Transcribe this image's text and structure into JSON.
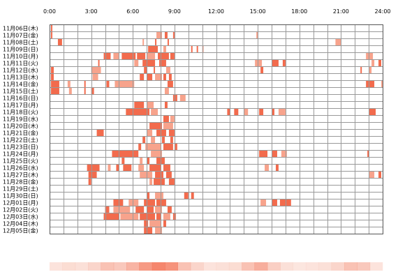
{
  "chart_data": {
    "type": "heatmap",
    "title": "",
    "xlabel": "",
    "ylabel": "",
    "xlim": [
      0,
      24
    ],
    "x_ticks": [
      "0:00",
      "3:00",
      "6:00",
      "9:00",
      "12:00",
      "15:00",
      "18:00",
      "21:00",
      "24:00"
    ],
    "grid": true,
    "colors": {
      "activity": "#f26b4d",
      "activity_light": "#f7a38c",
      "grid": "#999999",
      "border": "#555555"
    },
    "rows": [
      {
        "date": "11月06日(木)",
        "spans": [
          [
            0.1,
            0.2
          ]
        ]
      },
      {
        "date": "11月07日(金)",
        "spans": [
          [
            0.1,
            0.2
          ],
          [
            7.7,
            8.1
          ],
          [
            8.3,
            8.5
          ],
          [
            8.9,
            9.0
          ],
          [
            14.9,
            15.0
          ]
        ]
      },
      {
        "date": "11月08日(土)",
        "spans": [
          [
            0.6,
            0.9
          ],
          [
            6.7,
            6.8
          ],
          [
            7.6,
            7.7
          ],
          [
            8.5,
            8.6
          ],
          [
            20.6,
            21.0
          ]
        ]
      },
      {
        "date": "11月09日(日)",
        "spans": [
          [
            7.1,
            7.8
          ],
          [
            8.2,
            8.4
          ],
          [
            10.2,
            10.3
          ],
          [
            10.6,
            10.7
          ],
          [
            11.0,
            11.1
          ]
        ]
      },
      {
        "date": "11月10日(月)",
        "spans": [
          [
            3.9,
            4.4
          ],
          [
            4.6,
            5.0
          ],
          [
            5.2,
            6.2
          ],
          [
            6.3,
            6.9
          ],
          [
            7.0,
            7.6
          ],
          [
            7.8,
            8.6
          ],
          [
            8.7,
            9.0
          ],
          [
            22.8,
            23.3
          ]
        ]
      },
      {
        "date": "11月11日(火)",
        "spans": [
          [
            3.5,
            3.6
          ],
          [
            6.1,
            6.4
          ],
          [
            6.7,
            7.6
          ],
          [
            7.9,
            8.4
          ],
          [
            14.8,
            15.3
          ],
          [
            16.0,
            16.5
          ],
          [
            16.8,
            17.0
          ],
          [
            23.2,
            23.4
          ],
          [
            23.7,
            23.9
          ]
        ]
      },
      {
        "date": "11月12日(水)",
        "spans": [
          [
            0.1,
            0.3
          ],
          [
            3.0,
            3.7
          ],
          [
            6.8,
            7.0
          ],
          [
            7.5,
            7.6
          ],
          [
            8.4,
            8.7
          ],
          [
            15.2,
            15.4
          ],
          [
            22.4,
            22.5
          ],
          [
            23.0,
            23.2
          ]
        ]
      },
      {
        "date": "11月13日(木)",
        "spans": [
          [
            0.1,
            0.3
          ],
          [
            3.1,
            3.5
          ],
          [
            6.5,
            6.8
          ],
          [
            7.0,
            7.4
          ],
          [
            7.6,
            8.1
          ],
          [
            8.2,
            8.4
          ],
          [
            8.6,
            8.8
          ]
        ]
      },
      {
        "date": "11月14日(金)",
        "spans": [
          [
            0.1,
            0.7
          ],
          [
            1.3,
            1.5
          ],
          [
            2.5,
            2.6
          ],
          [
            4.1,
            4.3
          ],
          [
            4.7,
            6.1
          ],
          [
            8.5,
            8.9
          ],
          [
            22.8,
            23.4
          ],
          [
            23.9,
            24.0
          ]
        ]
      },
      {
        "date": "11月15日(土)",
        "spans": [
          [
            0.1,
            0.7
          ],
          [
            1.4,
            1.6
          ],
          [
            2.5,
            2.6
          ],
          [
            3.0,
            3.2
          ],
          [
            8.3,
            8.6
          ]
        ]
      },
      {
        "date": "11月16日(日)",
        "spans": [
          [
            8.9,
            9.2
          ],
          [
            9.4,
            9.8
          ]
        ]
      },
      {
        "date": "11月17日(月)",
        "spans": [
          [
            6.1,
            6.8
          ],
          [
            7.0,
            7.5
          ],
          [
            8.3,
            8.5
          ]
        ]
      },
      {
        "date": "11月18日(火)",
        "spans": [
          [
            5.5,
            7.2
          ],
          [
            7.3,
            7.8
          ],
          [
            12.8,
            13.0
          ],
          [
            13.3,
            13.6
          ],
          [
            14.0,
            14.3
          ],
          [
            15.1,
            15.4
          ],
          [
            16.0,
            16.2
          ],
          [
            16.5,
            17.0
          ],
          [
            23.0,
            23.5
          ]
        ]
      },
      {
        "date": "11月19日(水)",
        "spans": [
          [
            8.2,
            8.6
          ],
          [
            8.7,
            9.0
          ]
        ]
      },
      {
        "date": "11月20日(木)",
        "spans": [
          [
            7.2,
            8.1
          ],
          [
            8.2,
            8.9
          ]
        ]
      },
      {
        "date": "11月21日(金)",
        "spans": [
          [
            3.4,
            3.9
          ],
          [
            7.0,
            7.4
          ],
          [
            7.7,
            8.4
          ],
          [
            8.6,
            9.0
          ]
        ]
      },
      {
        "date": "11月22日(土)",
        "spans": [
          [
            6.7,
            6.9
          ],
          [
            7.3,
            7.6
          ],
          [
            8.1,
            8.3
          ],
          [
            8.7,
            8.9
          ]
        ]
      },
      {
        "date": "11月23日(日)",
        "spans": [
          [
            6.4,
            6.6
          ],
          [
            6.9,
            8.0
          ],
          [
            8.2,
            8.9
          ],
          [
            9.0,
            9.2
          ]
        ]
      },
      {
        "date": "11月24日(月)",
        "spans": [
          [
            4.5,
            6.4
          ],
          [
            7.3,
            8.1
          ],
          [
            15.1,
            15.7
          ],
          [
            16.0,
            16.4
          ],
          [
            16.7,
            17.1
          ],
          [
            22.9,
            23.0
          ]
        ]
      },
      {
        "date": "11月25日(火)",
        "spans": [
          [
            5.2,
            5.4
          ],
          [
            6.5,
            6.7
          ],
          [
            7.0,
            7.2
          ],
          [
            7.7,
            8.3
          ]
        ]
      },
      {
        "date": "11月26日(水)",
        "spans": [
          [
            2.7,
            3.6
          ],
          [
            4.2,
            4.4
          ],
          [
            4.8,
            5.0
          ],
          [
            5.3,
            5.9
          ],
          [
            6.4,
            6.8
          ],
          [
            7.2,
            8.0
          ],
          [
            8.2,
            8.7
          ],
          [
            15.5,
            15.8
          ],
          [
            16.3,
            16.5
          ]
        ]
      },
      {
        "date": "11月27日(木)",
        "spans": [
          [
            2.8,
            3.4
          ],
          [
            6.5,
            7.4
          ],
          [
            7.6,
            8.2
          ],
          [
            8.4,
            8.8
          ],
          [
            23.0,
            23.4
          ],
          [
            23.7,
            23.9
          ]
        ]
      },
      {
        "date": "11月28日(金)",
        "spans": [
          [
            2.8,
            3.0
          ],
          [
            7.2,
            7.4
          ],
          [
            7.5,
            8.3
          ],
          [
            8.6,
            9.0
          ]
        ]
      },
      {
        "date": "11月29日(土)",
        "spans": []
      },
      {
        "date": "11月30日(日)",
        "spans": [
          [
            7.0,
            7.2
          ],
          [
            7.6,
            8.2
          ],
          [
            9.7,
            10.0
          ],
          [
            10.2,
            10.4
          ]
        ]
      },
      {
        "date": "12月01日(月)",
        "spans": [
          [
            4.6,
            5.3
          ],
          [
            5.7,
            6.4
          ],
          [
            6.8,
            7.6
          ],
          [
            7.7,
            8.4
          ],
          [
            15.2,
            15.6
          ],
          [
            16.0,
            16.4
          ],
          [
            16.6,
            17.4
          ]
        ]
      },
      {
        "date": "12月02日(火)",
        "spans": [
          [
            4.0,
            4.3
          ],
          [
            4.6,
            5.8
          ],
          [
            6.2,
            6.8
          ],
          [
            7.0,
            7.5
          ],
          [
            7.6,
            8.1
          ],
          [
            8.5,
            8.8
          ]
        ]
      },
      {
        "date": "12月03日(水)",
        "spans": [
          [
            3.9,
            5.0
          ],
          [
            5.1,
            6.4
          ],
          [
            6.5,
            7.6
          ],
          [
            7.7,
            8.0
          ],
          [
            8.2,
            8.7
          ],
          [
            8.9,
            9.1
          ]
        ]
      },
      {
        "date": "12月04日(木)",
        "spans": [
          [
            6.8,
            7.1
          ],
          [
            7.2,
            8.0
          ],
          [
            8.2,
            8.4
          ]
        ]
      },
      {
        "date": "12月05日(金)",
        "spans": [
          [
            6.8,
            7.4
          ],
          [
            7.6,
            8.1
          ]
        ]
      }
    ],
    "summary_strip": [
      0.1,
      0.15,
      0.12,
      0.2,
      0.35,
      0.3,
      0.45,
      0.65,
      0.8,
      0.7,
      0.35,
      0.2,
      0.1,
      0.12,
      0.15,
      0.35,
      0.5,
      0.25,
      0.12,
      0.08,
      0.1,
      0.12,
      0.2,
      0.35,
      0.3,
      0.1
    ]
  }
}
